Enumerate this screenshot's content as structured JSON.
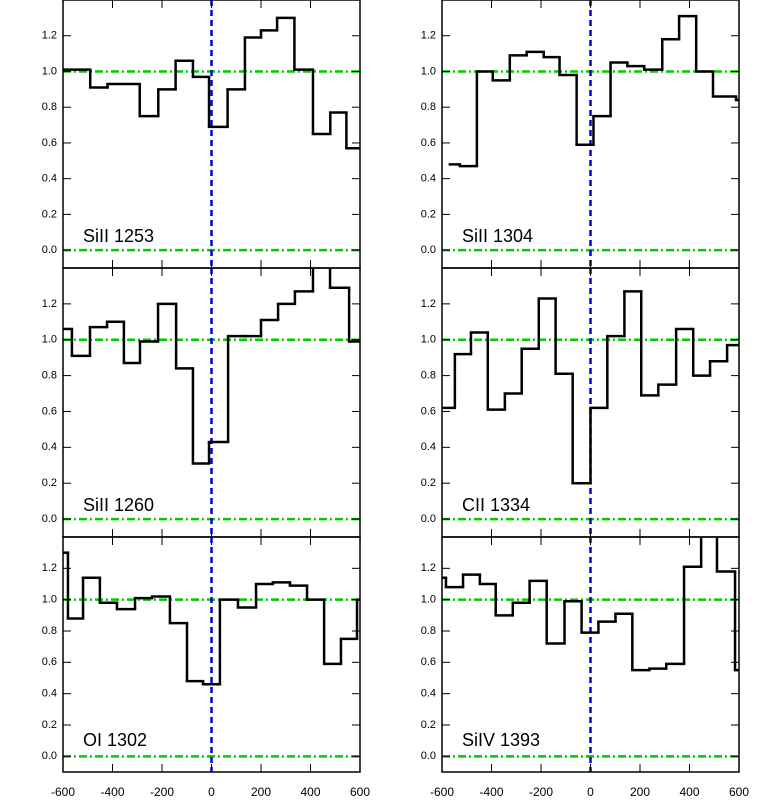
{
  "chart_data": [
    {
      "type": "step",
      "label": "SiII 1253",
      "x": [
        -600,
        -490,
        -420,
        -290,
        -215,
        -145,
        -75,
        -10,
        65,
        135,
        200,
        265,
        335,
        410,
        480,
        545
      ],
      "values": [
        1.01,
        0.91,
        0.93,
        0.75,
        0.9,
        1.06,
        0.97,
        0.69,
        0.9,
        1.19,
        1.23,
        1.3,
        1.01,
        0.65,
        0.77,
        0.57
      ],
      "color": "#000000",
      "xlim": [
        -600,
        600
      ],
      "ylim": [
        -0.1,
        1.4
      ],
      "xticks": [
        -600,
        -400,
        -200,
        0,
        200,
        400,
        600
      ],
      "yticks": [
        {
          "value": 0,
          "label": "0.0"
        },
        0.2,
        0.4,
        0.6,
        0.8,
        {
          "value": 1,
          "label": "1.0"
        },
        1.2
      ],
      "hlines": [
        0,
        1
      ],
      "hline_color": "#00cc00",
      "vline": 0,
      "vline_color": "#0000dd"
    },
    {
      "type": "step",
      "label": "SiII 1304",
      "x": [
        -568,
        -528,
        -459,
        -395,
        -326,
        -258,
        -189,
        -125,
        -56,
        12,
        81,
        149,
        217,
        290,
        358,
        427,
        495,
        588
      ],
      "values": [
        0.48,
        0.47,
        1.0,
        0.95,
        1.09,
        1.11,
        1.08,
        0.98,
        0.59,
        0.75,
        1.05,
        1.03,
        1.01,
        1.18,
        1.31,
        1.0,
        0.86,
        0.84
      ],
      "color": "#000000",
      "xlim": [
        -600,
        600
      ],
      "ylim": [
        -0.1,
        1.4
      ],
      "xticks": [
        -600,
        -400,
        -200,
        0,
        200,
        400,
        600
      ],
      "yticks": [
        {
          "value": 0,
          "label": "0.0"
        },
        0.2,
        0.4,
        0.6,
        0.8,
        {
          "value": 1,
          "label": "1.0"
        },
        1.2
      ],
      "hlines": [
        0,
        1
      ],
      "hline_color": "#00cc00",
      "vline": 0,
      "vline_color": "#0000dd"
    },
    {
      "type": "step",
      "label": "SiII 1260",
      "x": [
        -600,
        -564,
        -491,
        -422,
        -354,
        -289,
        -216,
        -143,
        -75,
        -10,
        67,
        135,
        200,
        269,
        337,
        410,
        479,
        556
      ],
      "values": [
        1.06,
        0.91,
        1.07,
        1.1,
        0.87,
        0.99,
        1.2,
        0.84,
        0.31,
        0.43,
        1.02,
        1.02,
        1.11,
        1.2,
        1.27,
        1.42,
        1.29,
        0.99
      ],
      "color": "#000000",
      "xlim": [
        -600,
        600
      ],
      "ylim": [
        -0.1,
        1.4
      ],
      "xticks": [
        -600,
        -400,
        -200,
        0,
        200,
        400,
        600
      ],
      "yticks": [
        {
          "value": 0,
          "label": "0.0"
        },
        0.2,
        0.4,
        0.6,
        0.8,
        {
          "value": 1,
          "label": "1.0"
        },
        1.2
      ],
      "hlines": [
        0,
        1
      ],
      "hline_color": "#00cc00",
      "vline": 0,
      "vline_color": "#0000dd"
    },
    {
      "type": "step",
      "label": "CII 1334",
      "x": [
        -600,
        -548,
        -483,
        -415,
        -346,
        -278,
        -209,
        -141,
        -72,
        0,
        68,
        137,
        205,
        274,
        346,
        415,
        483,
        552
      ],
      "values": [
        0.62,
        0.92,
        1.04,
        0.61,
        0.7,
        0.95,
        1.23,
        0.81,
        0.2,
        0.62,
        1.02,
        1.27,
        0.69,
        0.75,
        1.06,
        0.8,
        0.88,
        0.97
      ],
      "color": "#000000",
      "xlim": [
        -600,
        600
      ],
      "ylim": [
        -0.1,
        1.4
      ],
      "xticks": [
        -600,
        -400,
        -200,
        0,
        200,
        400,
        600
      ],
      "yticks": [
        {
          "value": 0,
          "label": "0.0"
        },
        0.2,
        0.4,
        0.6,
        0.8,
        {
          "value": 1,
          "label": "1.0"
        },
        1.2
      ],
      "hlines": [
        0,
        1
      ],
      "hline_color": "#00cc00",
      "vline": 0,
      "vline_color": "#0000dd"
    },
    {
      "type": "step",
      "label": "OI 1302",
      "x": [
        -600,
        -580,
        -519,
        -451,
        -382,
        -309,
        -240,
        -168,
        -99,
        -34,
        34,
        107,
        180,
        248,
        317,
        386,
        455,
        523,
        588
      ],
      "values": [
        1.3,
        0.88,
        1.14,
        0.98,
        0.94,
        1.01,
        1.02,
        0.85,
        0.48,
        0.46,
        1.0,
        0.95,
        1.1,
        1.11,
        1.09,
        1.0,
        0.59,
        0.75,
        1.0
      ],
      "color": "#000000",
      "xlim": [
        -600,
        600
      ],
      "ylim": [
        -0.1,
        1.4
      ],
      "xticks": [
        -600,
        -400,
        -200,
        0,
        200,
        400,
        600
      ],
      "yticks": [
        {
          "value": 0,
          "label": "0.0"
        },
        0.2,
        0.4,
        0.6,
        0.8,
        {
          "value": 1,
          "label": "1.0"
        },
        1.2
      ],
      "hlines": [
        0,
        1
      ],
      "hline_color": "#00cc00",
      "vline": 0,
      "vline_color": "#0000dd"
    },
    {
      "type": "step",
      "label": "SiIV 1393",
      "x": [
        -600,
        -584,
        -515,
        -447,
        -383,
        -314,
        -246,
        -177,
        -105,
        -36,
        32,
        101,
        169,
        238,
        306,
        378,
        447,
        511,
        584
      ],
      "values": [
        1.14,
        1.08,
        1.16,
        1.1,
        0.9,
        0.98,
        1.12,
        0.72,
        0.99,
        0.79,
        0.86,
        0.91,
        0.55,
        0.56,
        0.59,
        1.21,
        1.45,
        1.18,
        0.55
      ],
      "color": "#000000",
      "xlim": [
        -600,
        600
      ],
      "ylim": [
        -0.1,
        1.4
      ],
      "xticks": [
        -600,
        -400,
        -200,
        0,
        200,
        400,
        600
      ],
      "yticks": [
        {
          "value": 0,
          "label": "0.0"
        },
        0.2,
        0.4,
        0.6,
        0.8,
        {
          "value": 1,
          "label": "1.0"
        },
        1.2
      ],
      "hlines": [
        0,
        1
      ],
      "hline_color": "#00cc00",
      "vline": 0,
      "vline_color": "#0000dd"
    }
  ]
}
